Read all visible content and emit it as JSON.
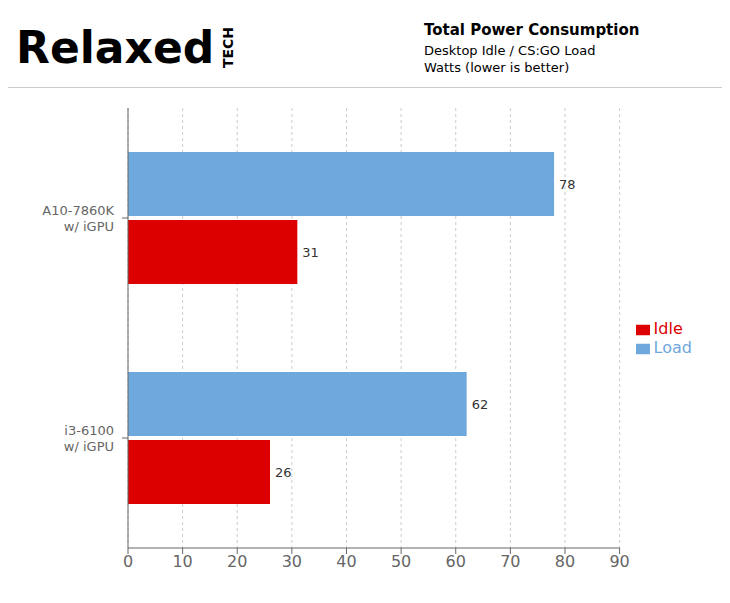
{
  "chart_data": {
    "type": "bar",
    "orientation": "horizontal",
    "title": "Total Power Consumption",
    "subtitle": "Desktop Idle / CS:GO Load",
    "annotations": [
      "Watts (lower is better)",
      "Relaxed",
      "TECH"
    ],
    "categories": [
      "A10-7860K\nw/ iGPU",
      "i3-6100\nw/ iGPU"
    ],
    "series": [
      {
        "name": "Load",
        "color": "#6fa8dc",
        "values": [
          78,
          62
        ]
      },
      {
        "name": "Idle",
        "color": "#dd0000",
        "values": [
          31,
          26
        ]
      }
    ],
    "xlim": [
      0,
      90
    ],
    "xticks": [
      0,
      10,
      20,
      30,
      40,
      50,
      60,
      70,
      80,
      90
    ],
    "grid": true,
    "legend": "right",
    "data_labels": true
  }
}
